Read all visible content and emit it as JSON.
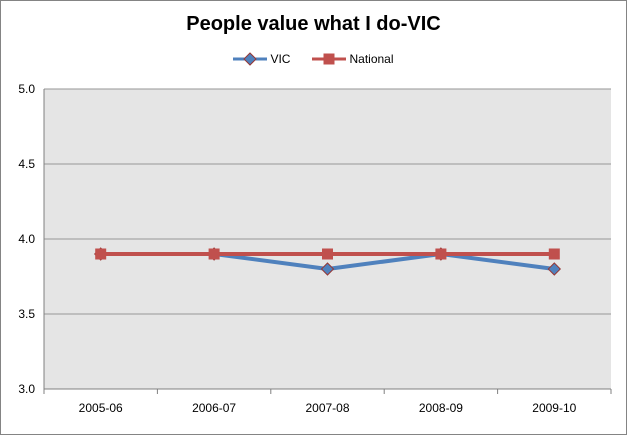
{
  "chart_data": {
    "type": "line",
    "title": "People value what I do-VIC",
    "categories": [
      "2005-06",
      "2006-07",
      "2007-08",
      "2008-09",
      "2009-10"
    ],
    "series": [
      {
        "name": "VIC",
        "values": [
          3.9,
          3.9,
          3.8,
          3.9,
          3.8
        ],
        "color": "#4F81BD",
        "marker": "diamond",
        "marker_border": "#953735"
      },
      {
        "name": "National",
        "values": [
          3.9,
          3.9,
          3.9,
          3.9,
          3.9
        ],
        "color": "#C0504D",
        "marker": "square",
        "marker_border": "#C0504D"
      }
    ],
    "xlabel": "",
    "ylabel": "",
    "ylim": [
      3.0,
      5.0
    ],
    "yticks": [
      3.0,
      3.5,
      4.0,
      4.5,
      5.0
    ],
    "ytick_labels": [
      "3.0",
      "3.5",
      "4.0",
      "4.5",
      "5.0"
    ],
    "grid": true,
    "legend_position": "top",
    "colors": {
      "plot_background": "#E5E5E5",
      "gridline": "#969696",
      "axis": "#808080",
      "text": "#000000",
      "figure_border": "#848484"
    }
  }
}
